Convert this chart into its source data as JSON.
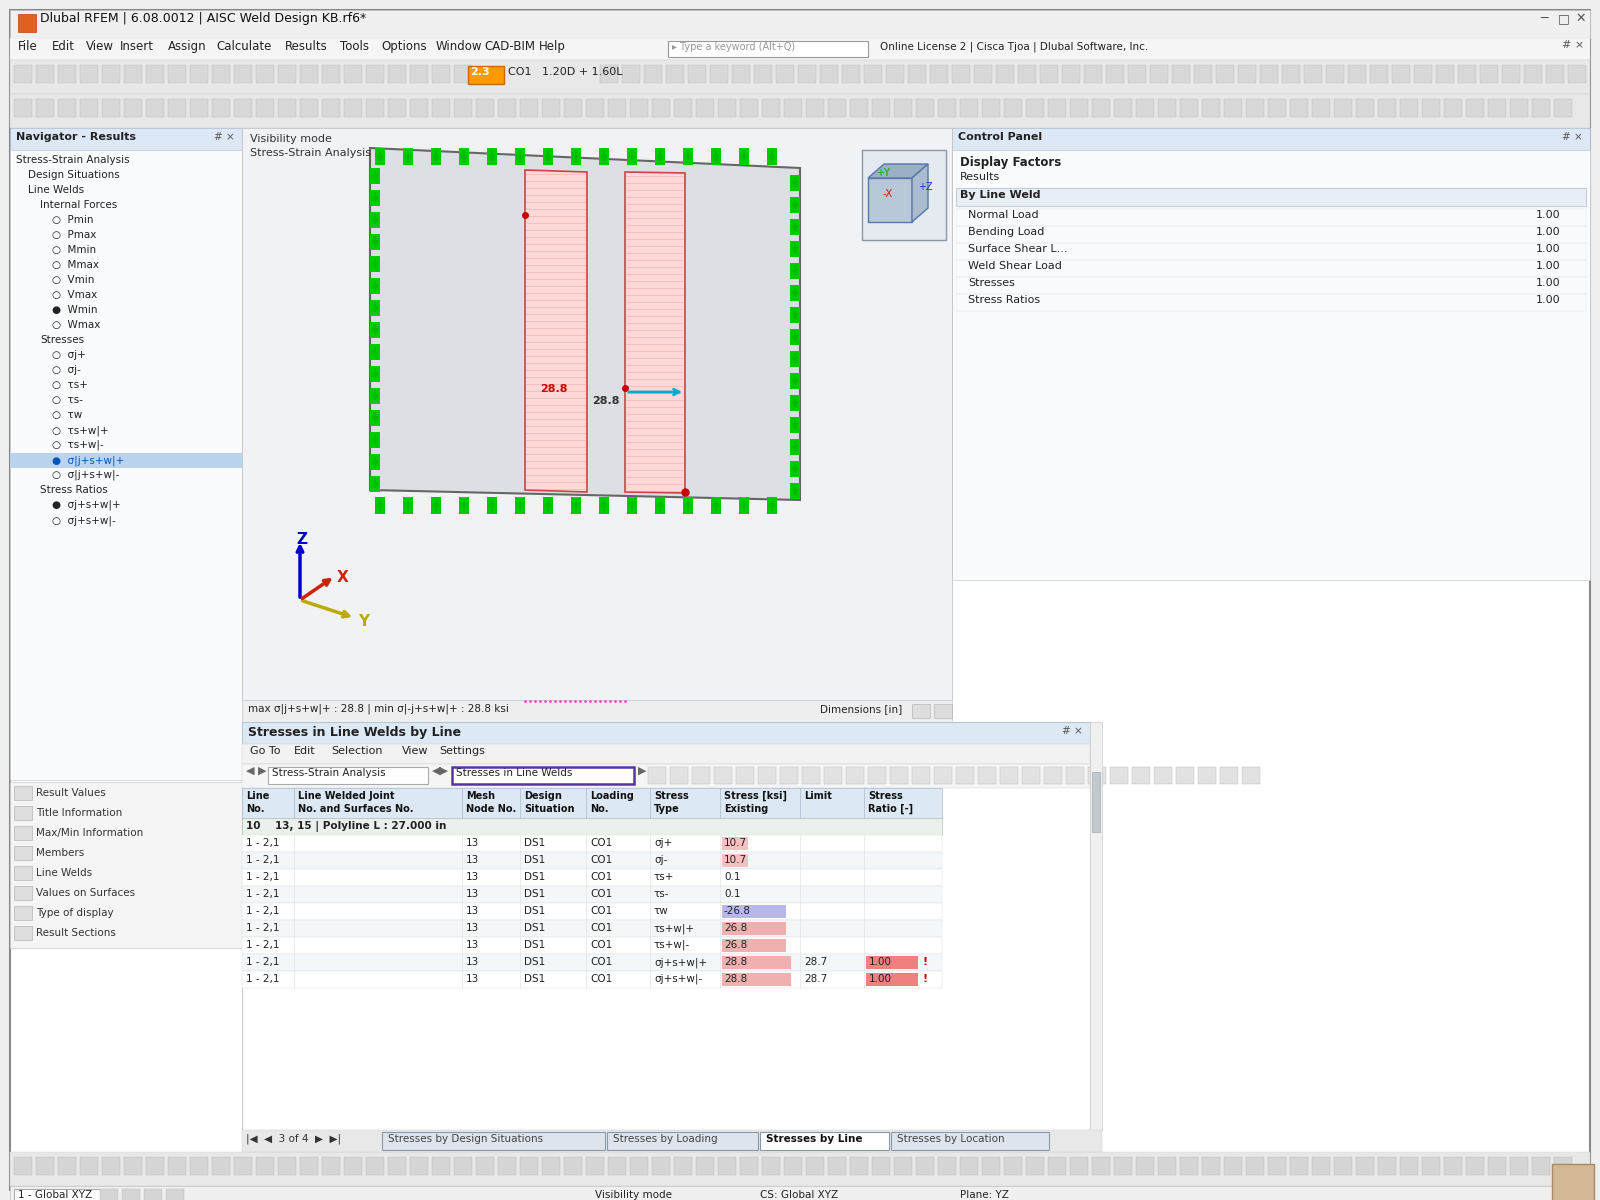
{
  "title": "Dlubal RFEM | 6.08.0012 | AISC Weld Design KB.rf6*",
  "menu_items": [
    "File",
    "Edit",
    "View",
    "Insert",
    "Assign",
    "Calculate",
    "Results",
    "Tools",
    "Options",
    "Window",
    "CAD-BIM",
    "Help"
  ],
  "nav_title": "Navigator - Results",
  "control_panel_title": "Control Panel",
  "by_line_weld_items": [
    "Normal Load",
    "Bending Load",
    "Surface Shear L...",
    "Weld Shear Load",
    "Stresses",
    "Stress Ratios"
  ],
  "by_line_weld_values": [
    "1.00",
    "1.00",
    "1.00",
    "1.00",
    "1.00",
    "1.00"
  ],
  "max_text": "max σ|j+s+w|+ : 28.8 | min σ|-j+s+w|+ : 28.8 ksi",
  "dimensions_text": "Dimensions [in]",
  "table_title": "Stresses in Line Welds by Line",
  "goto_bar": [
    "Go To",
    "Edit",
    "Selection",
    "View",
    "Settings"
  ],
  "dropdown1": "Stress-Strain Analysis",
  "dropdown2": "Stresses in Line Welds",
  "table_headers": [
    "Line\nNo.",
    "Line Welded Joint\nNo. and Surfaces No.",
    "Mesh\nNode No.",
    "Design\nSituation",
    "Loading\nNo.",
    "Stress\nType",
    "Stress [ksi]\nExisting",
    "Limit",
    "Stress\nRatio [-]"
  ],
  "table_row_group": "10    13, 15 | Polyline L : 27.000 in",
  "table_rows": [
    [
      "1 - 2,1",
      "13",
      "DS1",
      "CO1",
      "σj+",
      "10.7",
      "",
      ""
    ],
    [
      "1 - 2,1",
      "13",
      "DS1",
      "CO1",
      "σj-",
      "10.7",
      "",
      ""
    ],
    [
      "1 - 2,1",
      "13",
      "DS1",
      "CO1",
      "τs+",
      "0.1",
      "",
      ""
    ],
    [
      "1 - 2,1",
      "13",
      "DS1",
      "CO1",
      "τs-",
      "0.1",
      "",
      ""
    ],
    [
      "1 - 2,1",
      "13",
      "DS1",
      "CO1",
      "τw",
      "-26.8",
      "",
      ""
    ],
    [
      "1 - 2,1",
      "13",
      "DS1",
      "CO1",
      "τs+w|+",
      "26.8",
      "",
      ""
    ],
    [
      "1 - 2,1",
      "13",
      "DS1",
      "CO1",
      "τs+w|-",
      "26.8",
      "",
      ""
    ],
    [
      "1 - 2,1",
      "13",
      "DS1",
      "CO1",
      "σj+s+w|+",
      "28.8",
      "28.7",
      "1.00"
    ],
    [
      "1 - 2,1",
      "13",
      "DS1",
      "CO1",
      "σj+s+w|-",
      "28.8",
      "28.7",
      "1.00"
    ]
  ],
  "bottom_tabs": [
    "Stresses by Design Situations",
    "Stresses by Loading",
    "Stresses by Line",
    "Stresses by Location"
  ],
  "active_tab": "Stresses by Line",
  "outer_border_color": "#c0c0c0",
  "titlebar_bg": "#f0f0f0",
  "menubar_bg": "#f5f5f5",
  "toolbar_bg": "#e8e8e8",
  "nav_header_bg": "#dce8f5",
  "view_bg": "#f2f4f6",
  "table_header_bg": "#dce8f4",
  "selected_nav_bg": "#bad4f0",
  "group_row_bg": "#e8eeea",
  "pink_bar_color": "#f0b0b0",
  "blue_bar_color": "#b8b8e8",
  "ratio_bar_color": "#f08080",
  "label_28_8_red": "28.8",
  "label_28_8_black": "28.8"
}
